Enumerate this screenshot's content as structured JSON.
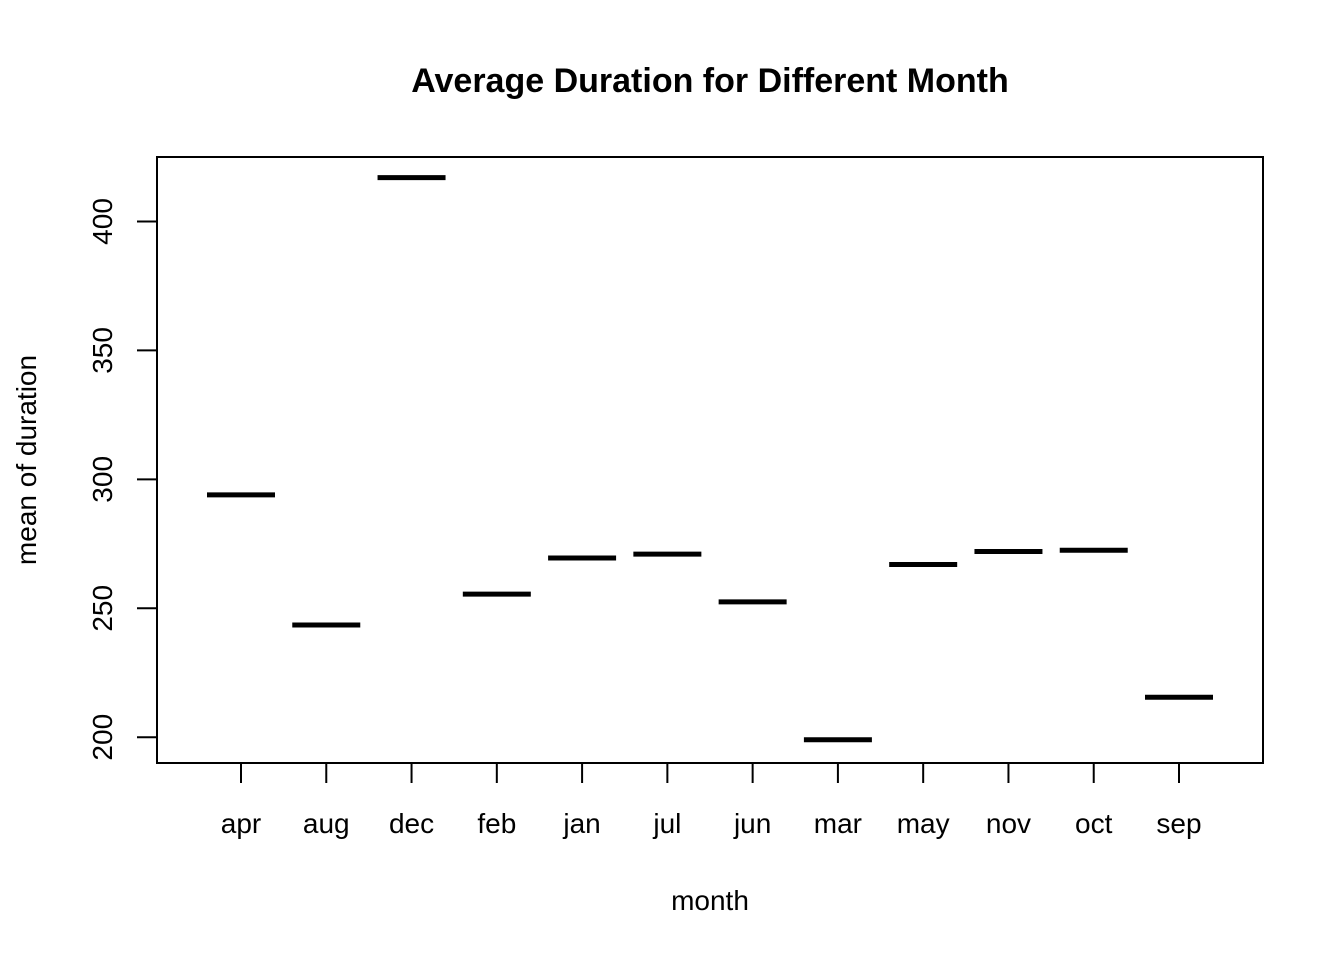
{
  "chart_data": {
    "type": "bar",
    "title": "Average Duration for Different Month",
    "xlabel": "month",
    "ylabel": "mean of duration",
    "categories": [
      "apr",
      "aug",
      "dec",
      "feb",
      "jan",
      "jul",
      "jun",
      "mar",
      "may",
      "nov",
      "oct",
      "sep"
    ],
    "series": [
      {
        "values": [
          294,
          243.5,
          417,
          255.5,
          269.5,
          271,
          252.5,
          199,
          267,
          272,
          272.5,
          215.5
        ]
      }
    ],
    "yticks": [
      200,
      250,
      300,
      350,
      400
    ],
    "ylim": [
      190,
      425
    ],
    "grid": false,
    "legend": "none",
    "mark_style": "horizontal segments",
    "colors": {
      "mark": "#000000",
      "axis": "#000000",
      "background": "#ffffff"
    }
  }
}
